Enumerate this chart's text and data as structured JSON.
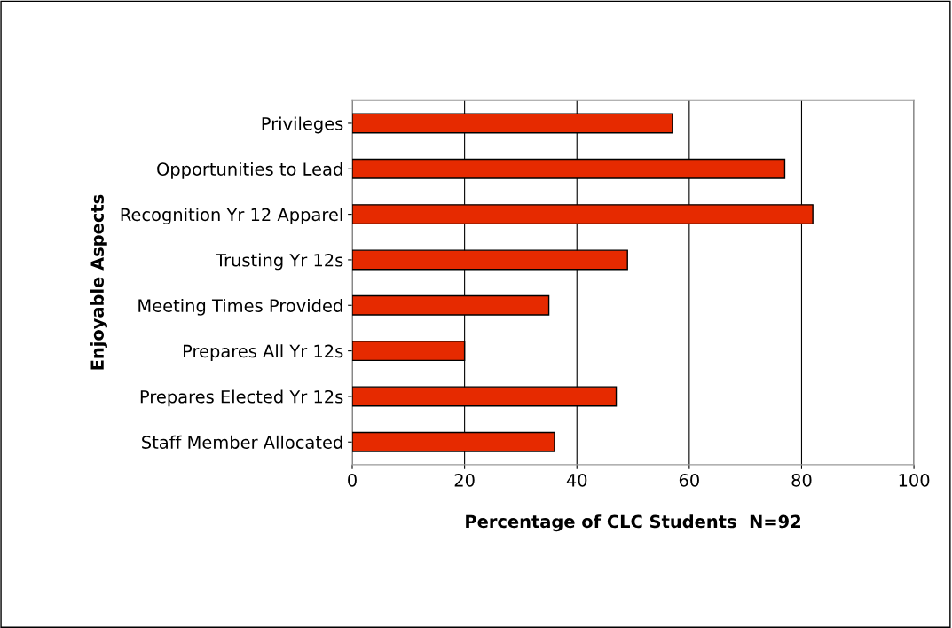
{
  "chart_data": {
    "type": "bar",
    "orientation": "horizontal",
    "categories": [
      "Privileges",
      "Opportunities to Lead",
      "Recognition Yr 12 Apparel",
      "Trusting Yr 12s",
      "Meeting Times Provided",
      "Prepares All Yr 12s",
      "Prepares Elected Yr 12s",
      "Staff Member Allocated"
    ],
    "values": [
      57,
      77,
      82,
      49,
      35,
      20,
      47,
      36
    ],
    "color": "#e62a00",
    "xlim": [
      0,
      100
    ],
    "xticks": [
      0,
      20,
      40,
      60,
      80,
      100
    ],
    "xlabel": "Percentage of CLC Students  N=92",
    "ylabel": "Enjoyable Aspects",
    "grid": "x",
    "legend": false
  }
}
